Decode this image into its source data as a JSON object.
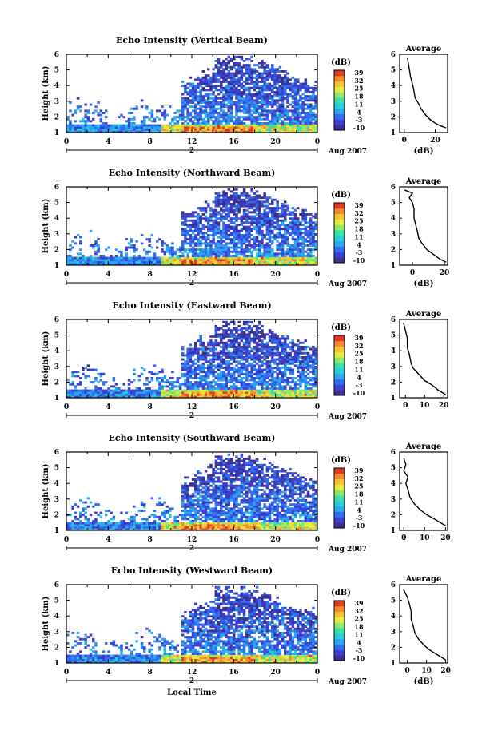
{
  "figure": {
    "xlabel": "Local Time",
    "day_label": "2",
    "month_label": "Aug 2007",
    "ylabel": "Height (km)",
    "colorbar_unit": "(dB)",
    "average_title": "Average",
    "average_xlabel": "(dB)"
  },
  "colors": {
    "colormap": [
      "#3b2f8f",
      "#3c3fd1",
      "#2f6ff0",
      "#2aa7ee",
      "#27cfd8",
      "#39e0a8",
      "#8ee86a",
      "#e6ec3e",
      "#f7c233",
      "#f58a2c",
      "#e23b22"
    ]
  },
  "chart_data": [
    {
      "type": "heatmap",
      "title": "Echo Intensity (Vertical Beam)",
      "x_ticks": [
        "0",
        "4",
        "8",
        "12",
        "16",
        "20",
        "0"
      ],
      "xlim": [
        0,
        24
      ],
      "y_ticks": [
        "1",
        "2",
        "3",
        "4",
        "5",
        "6"
      ],
      "ylim": [
        1,
        6
      ],
      "colorbar_ticks": [
        "39",
        "32",
        "25",
        "18",
        "11",
        "4",
        "-3",
        "-10"
      ],
      "colorbar_range": [
        -10,
        39
      ],
      "average": {
        "title": "Average",
        "xlabel": "(dB)",
        "x_ticks": [
          "0",
          "20"
        ],
        "xlim": [
          -3,
          28
        ],
        "points": [
          [
            2,
            5.8
          ],
          [
            3,
            5.2
          ],
          [
            4,
            4.6
          ],
          [
            5,
            4.2
          ],
          [
            6,
            3.8
          ],
          [
            7,
            3.2
          ],
          [
            9,
            2.9
          ],
          [
            11,
            2.5
          ],
          [
            14,
            2.1
          ],
          [
            17,
            1.8
          ],
          [
            20,
            1.6
          ],
          [
            23,
            1.45
          ],
          [
            27,
            1.3
          ]
        ]
      }
    },
    {
      "type": "heatmap",
      "title": "Echo Intensity (Northward Beam)",
      "x_ticks": [
        "0",
        "4",
        "8",
        "12",
        "16",
        "20",
        "0"
      ],
      "xlim": [
        0,
        24
      ],
      "y_ticks": [
        "1",
        "2",
        "3",
        "4",
        "5",
        "6"
      ],
      "ylim": [
        1,
        6
      ],
      "colorbar_ticks": [
        "39",
        "32",
        "25",
        "18",
        "11",
        "4",
        "-3",
        "-10"
      ],
      "colorbar_range": [
        -10,
        39
      ],
      "average": {
        "title": "Average",
        "xlabel": "(dB)",
        "x_ticks": [
          "0",
          "20"
        ],
        "xlim": [
          -8,
          22
        ],
        "points": [
          [
            -5,
            5.8
          ],
          [
            0,
            5.6
          ],
          [
            -2,
            5.3
          ],
          [
            0,
            5.0
          ],
          [
            1,
            4.6
          ],
          [
            1,
            4.0
          ],
          [
            2,
            3.6
          ],
          [
            3,
            3.2
          ],
          [
            4,
            2.7
          ],
          [
            6,
            2.4
          ],
          [
            9,
            2.0
          ],
          [
            13,
            1.7
          ],
          [
            17,
            1.4
          ],
          [
            21,
            1.2
          ]
        ]
      }
    },
    {
      "type": "heatmap",
      "title": "Echo Intensity (Eastward Beam)",
      "x_ticks": [
        "0",
        "4",
        "8",
        "12",
        "16",
        "20",
        "0"
      ],
      "xlim": [
        0,
        24
      ],
      "y_ticks": [
        "1",
        "2",
        "3",
        "4",
        "5",
        "6"
      ],
      "ylim": [
        1,
        6
      ],
      "colorbar_ticks": [
        "39",
        "32",
        "25",
        "18",
        "11",
        "4",
        "-3",
        "-10"
      ],
      "colorbar_range": [
        -10,
        39
      ],
      "average": {
        "title": "Average",
        "xlabel": "",
        "x_ticks": [
          "0",
          "10",
          "20"
        ],
        "xlim": [
          -3,
          22
        ],
        "points": [
          [
            -1,
            5.8
          ],
          [
            0,
            5.3
          ],
          [
            1,
            4.8
          ],
          [
            1,
            4.2
          ],
          [
            2,
            3.8
          ],
          [
            3,
            3.2
          ],
          [
            4,
            2.9
          ],
          [
            7,
            2.5
          ],
          [
            10,
            2.1
          ],
          [
            14,
            1.8
          ],
          [
            17,
            1.5
          ],
          [
            21,
            1.2
          ]
        ]
      }
    },
    {
      "type": "heatmap",
      "title": "Echo Intensity (Southward Beam)",
      "x_ticks": [
        "0",
        "4",
        "8",
        "12",
        "16",
        "20",
        "0"
      ],
      "xlim": [
        0,
        24
      ],
      "y_ticks": [
        "1",
        "2",
        "3",
        "4",
        "5",
        "6"
      ],
      "ylim": [
        1,
        6
      ],
      "colorbar_ticks": [
        "39",
        "32",
        "25",
        "18",
        "11",
        "4",
        "-3",
        "-10"
      ],
      "colorbar_range": [
        -10,
        39
      ],
      "average": {
        "title": "Average",
        "xlabel": "",
        "x_ticks": [
          "0",
          "10",
          "20"
        ],
        "xlim": [
          -2,
          21
        ],
        "points": [
          [
            0,
            5.6
          ],
          [
            1,
            5.2
          ],
          [
            0,
            4.8
          ],
          [
            2,
            4.4
          ],
          [
            1,
            4.0
          ],
          [
            2,
            3.6
          ],
          [
            3,
            3.1
          ],
          [
            5,
            2.7
          ],
          [
            8,
            2.3
          ],
          [
            11,
            2.0
          ],
          [
            15,
            1.7
          ],
          [
            20,
            1.3
          ]
        ]
      }
    },
    {
      "type": "heatmap",
      "title": "Echo Intensity (Westward Beam)",
      "x_ticks": [
        "0",
        "4",
        "8",
        "12",
        "16",
        "20",
        "0"
      ],
      "xlim": [
        0,
        24
      ],
      "y_ticks": [
        "1",
        "2",
        "3",
        "4",
        "5",
        "6"
      ],
      "ylim": [
        1,
        6
      ],
      "colorbar_ticks": [
        "39",
        "32",
        "25",
        "18",
        "11",
        "4",
        "-3",
        "-10"
      ],
      "colorbar_range": [
        -10,
        39
      ],
      "average": {
        "title": "Average",
        "xlabel": "(dB)",
        "x_ticks": [
          "0",
          "10",
          "20"
        ],
        "xlim": [
          -4,
          21
        ],
        "points": [
          [
            -2,
            5.7
          ],
          [
            0,
            5.2
          ],
          [
            1,
            4.8
          ],
          [
            2,
            4.3
          ],
          [
            2,
            3.8
          ],
          [
            3,
            3.4
          ],
          [
            4,
            2.9
          ],
          [
            6,
            2.5
          ],
          [
            9,
            2.1
          ],
          [
            12,
            1.8
          ],
          [
            16,
            1.5
          ],
          [
            20,
            1.2
          ]
        ]
      }
    }
  ]
}
